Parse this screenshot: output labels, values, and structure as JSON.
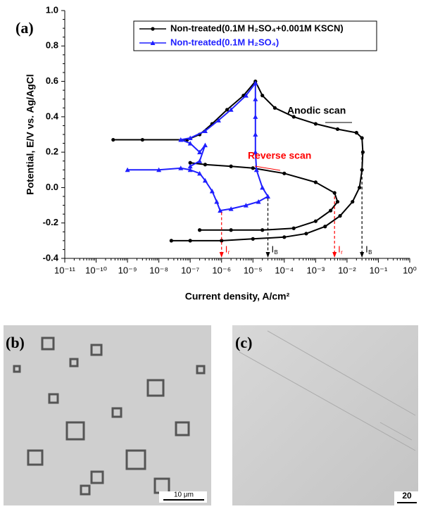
{
  "chart_data": {
    "type": "line",
    "panel": "(a)",
    "xlabel": "Current density, A/cm²",
    "ylabel": "Potential, E/V vs. Ag/AgCl",
    "xscale": "log",
    "xlim": [
      1e-11,
      1
    ],
    "xticks": [
      {
        "value": 1e-11,
        "label": "10⁻¹¹"
      },
      {
        "value": 1e-10,
        "label": "10⁻¹⁰"
      },
      {
        "value": 1e-09,
        "label": "10⁻⁹"
      },
      {
        "value": 1e-08,
        "label": "10⁻⁸"
      },
      {
        "value": 1e-07,
        "label": "10⁻⁷"
      },
      {
        "value": 1e-06,
        "label": "10⁻⁶"
      },
      {
        "value": 1e-05,
        "label": "10⁻⁵"
      },
      {
        "value": 0.0001,
        "label": "10⁻⁴"
      },
      {
        "value": 0.001,
        "label": "10⁻³"
      },
      {
        "value": 0.01,
        "label": "10⁻²"
      },
      {
        "value": 0.1,
        "label": "10⁻¹"
      },
      {
        "value": 1,
        "label": "10⁰"
      }
    ],
    "ylim": [
      -0.4,
      1.0
    ],
    "yticks": [
      -0.4,
      -0.2,
      {
        "value": 0,
        "label": "0.0"
      },
      0.2,
      0.4,
      0.6,
      0.8,
      {
        "value": 1,
        "label": "1.0"
      }
    ],
    "legend": "upper center",
    "series": [
      {
        "name": "Non-treated(0.1M H₂SO₄+0.001M KSCN)",
        "color": "#000000",
        "marker": "circle",
        "x": [
          2.5e-08,
          1e-07,
          1e-06,
          1e-05,
          0.0001,
          0.0005,
          0.002,
          0.006,
          0.015,
          0.025,
          0.03,
          0.032,
          0.03,
          0.02,
          0.005,
          0.001,
          0.0002,
          5e-05,
          2e-05,
          1.2e-05,
          5e-06,
          1.5e-06,
          5e-07,
          2e-07,
          8e-08,
          3e-09,
          3.5e-10,
          null,
          1e-07,
          3e-07,
          2e-06,
          1e-05,
          0.0001,
          0.001,
          0.004,
          0.005,
          0.003,
          0.001,
          0.0002,
          2e-05,
          2e-06,
          2e-07
        ],
        "values": [
          -0.3,
          -0.3,
          -0.3,
          -0.29,
          -0.28,
          -0.26,
          -0.22,
          -0.16,
          -0.08,
          0.0,
          0.1,
          0.2,
          0.28,
          0.31,
          0.33,
          0.36,
          0.4,
          0.45,
          0.52,
          0.6,
          0.52,
          0.44,
          0.36,
          0.3,
          0.27,
          0.27,
          0.27,
          null,
          0.14,
          0.13,
          0.12,
          0.11,
          0.08,
          0.03,
          -0.03,
          -0.08,
          -0.13,
          -0.19,
          -0.23,
          -0.24,
          -0.24,
          -0.24
        ]
      },
      {
        "name": "Non-treated(0.1M H₂SO₄)",
        "color": "#1f1fff",
        "marker": "triangle",
        "x": [
          1e-09,
          1e-08,
          5e-08,
          1e-07,
          2e-07,
          3e-07,
          5e-07,
          7e-07,
          9e-07,
          2e-06,
          6e-06,
          1.5e-05,
          3e-05,
          2e-05,
          1.3e-05,
          1.2e-05,
          1.2e-05,
          1.2e-05,
          1.2e-05,
          1.2e-05,
          6e-06,
          2e-06,
          8e-07,
          3e-07,
          1e-07,
          5e-08,
          1e-07,
          2e-07,
          3e-07,
          2e-07,
          1e-07
        ],
        "values": [
          0.1,
          0.1,
          0.11,
          0.1,
          0.08,
          0.04,
          -0.02,
          -0.08,
          -0.13,
          -0.12,
          -0.1,
          -0.08,
          -0.05,
          0.0,
          0.1,
          0.2,
          0.3,
          0.4,
          0.5,
          0.59,
          0.52,
          0.44,
          0.38,
          0.32,
          0.28,
          0.27,
          0.25,
          0.2,
          0.24,
          0.15,
          0.12
        ]
      }
    ],
    "annotations": [
      {
        "text": "Anodic scan",
        "color": "#000000"
      },
      {
        "text": "Reverse scan",
        "color": "#ff0000"
      }
    ],
    "current_markers": [
      {
        "text": "I",
        "sub": "r",
        "x": 1e-06,
        "y": -0.14,
        "color": "#ff0000"
      },
      {
        "text": "I",
        "sub": "B",
        "x": 3e-05,
        "y": -0.06,
        "color": "#000000"
      },
      {
        "text": "I",
        "sub": "r",
        "x": 0.004,
        "y": -0.05,
        "color": "#ff0000"
      },
      {
        "text": "I",
        "sub": "B",
        "x": 0.03,
        "y": 0.2,
        "color": "#000000"
      }
    ]
  },
  "panels": [
    {
      "label": "(b)",
      "scale_bar": "10 μm"
    },
    {
      "label": "(c)",
      "scale_bar": "20"
    }
  ]
}
